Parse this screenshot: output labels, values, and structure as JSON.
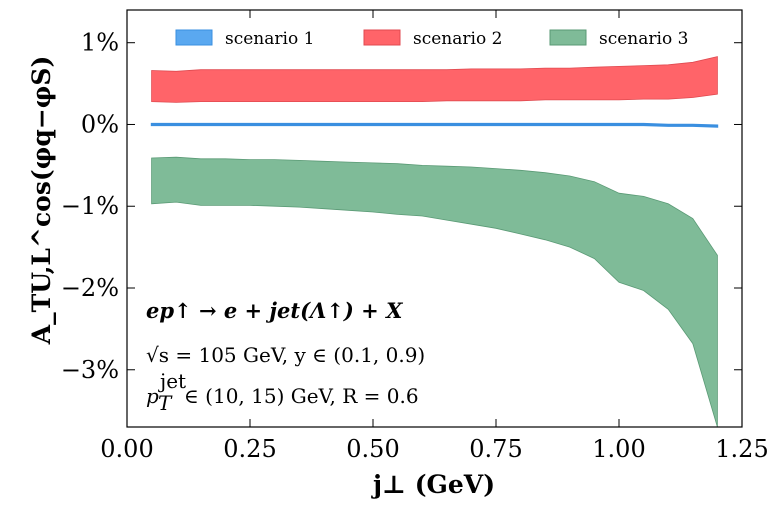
{
  "chart_data": {
    "type": "area",
    "xlabel": "j⊥ (GeV)",
    "ylabel": "A_TU,L^cos(φq−φS)",
    "xlim": [
      0.0,
      1.25
    ],
    "ylim": [
      -3.7,
      1.4
    ],
    "xticks": [
      0.0,
      0.25,
      0.5,
      0.75,
      1.0,
      1.25
    ],
    "xtick_labels": [
      "0.00",
      "0.25",
      "0.50",
      "0.75",
      "1.00",
      "1.25"
    ],
    "yticks": [
      1,
      0,
      -1,
      -2,
      -3
    ],
    "ytick_labels": [
      "1%",
      "0%",
      "−1%",
      "−2%",
      "−3%"
    ],
    "grid": false,
    "legend_position": "top",
    "x": [
      0.05,
      0.1,
      0.15,
      0.2,
      0.25,
      0.3,
      0.35,
      0.4,
      0.45,
      0.5,
      0.55,
      0.6,
      0.65,
      0.7,
      0.75,
      0.8,
      0.85,
      0.9,
      0.95,
      1.0,
      1.05,
      1.1,
      1.15,
      1.2
    ],
    "series": [
      {
        "name": "scenario 1",
        "color": "#5aa8f0",
        "edge": "#3a8fe0",
        "lower": [
          -0.01,
          -0.01,
          -0.01,
          -0.01,
          -0.01,
          -0.01,
          -0.01,
          -0.01,
          -0.01,
          -0.01,
          -0.01,
          -0.01,
          -0.01,
          -0.01,
          -0.01,
          -0.01,
          -0.01,
          -0.01,
          -0.01,
          -0.01,
          -0.01,
          -0.02,
          -0.02,
          -0.03
        ],
        "upper": [
          0.01,
          0.01,
          0.01,
          0.01,
          0.01,
          0.01,
          0.01,
          0.01,
          0.01,
          0.01,
          0.01,
          0.01,
          0.01,
          0.01,
          0.01,
          0.01,
          0.01,
          0.01,
          0.01,
          0.01,
          0.01,
          0.0,
          0.0,
          -0.01
        ]
      },
      {
        "name": "scenario 2",
        "color": "#ff6469",
        "edge": "#e04a50",
        "lower": [
          0.28,
          0.27,
          0.28,
          0.28,
          0.28,
          0.28,
          0.28,
          0.28,
          0.28,
          0.28,
          0.28,
          0.28,
          0.29,
          0.29,
          0.29,
          0.29,
          0.3,
          0.3,
          0.3,
          0.3,
          0.31,
          0.31,
          0.33,
          0.37
        ],
        "upper": [
          0.66,
          0.65,
          0.67,
          0.67,
          0.67,
          0.67,
          0.67,
          0.67,
          0.67,
          0.67,
          0.67,
          0.67,
          0.67,
          0.68,
          0.68,
          0.68,
          0.69,
          0.69,
          0.7,
          0.71,
          0.72,
          0.73,
          0.76,
          0.83
        ]
      },
      {
        "name": "scenario 3",
        "color": "#7fbb98",
        "edge": "#5a9a75",
        "lower": [
          -0.97,
          -0.95,
          -0.99,
          -0.99,
          -0.99,
          -1.0,
          -1.01,
          -1.03,
          -1.05,
          -1.07,
          -1.1,
          -1.12,
          -1.17,
          -1.22,
          -1.27,
          -1.34,
          -1.41,
          -1.5,
          -1.64,
          -1.93,
          -2.03,
          -2.26,
          -2.68,
          -3.7
        ],
        "upper": [
          -0.41,
          -0.4,
          -0.42,
          -0.42,
          -0.43,
          -0.43,
          -0.44,
          -0.45,
          -0.46,
          -0.47,
          -0.48,
          -0.5,
          -0.51,
          -0.52,
          -0.54,
          -0.56,
          -0.59,
          -0.63,
          -0.7,
          -0.84,
          -0.88,
          -0.97,
          -1.15,
          -1.6
        ]
      }
    ],
    "annotations": [
      "ep↑ → e + jet(Λ↑) + X",
      "√s = 105 GeV,  y ∈ (0.1, 0.9)",
      "p",
      "T",
      "jet",
      "∈ (10, 15) GeV,  R = 0.6"
    ]
  }
}
